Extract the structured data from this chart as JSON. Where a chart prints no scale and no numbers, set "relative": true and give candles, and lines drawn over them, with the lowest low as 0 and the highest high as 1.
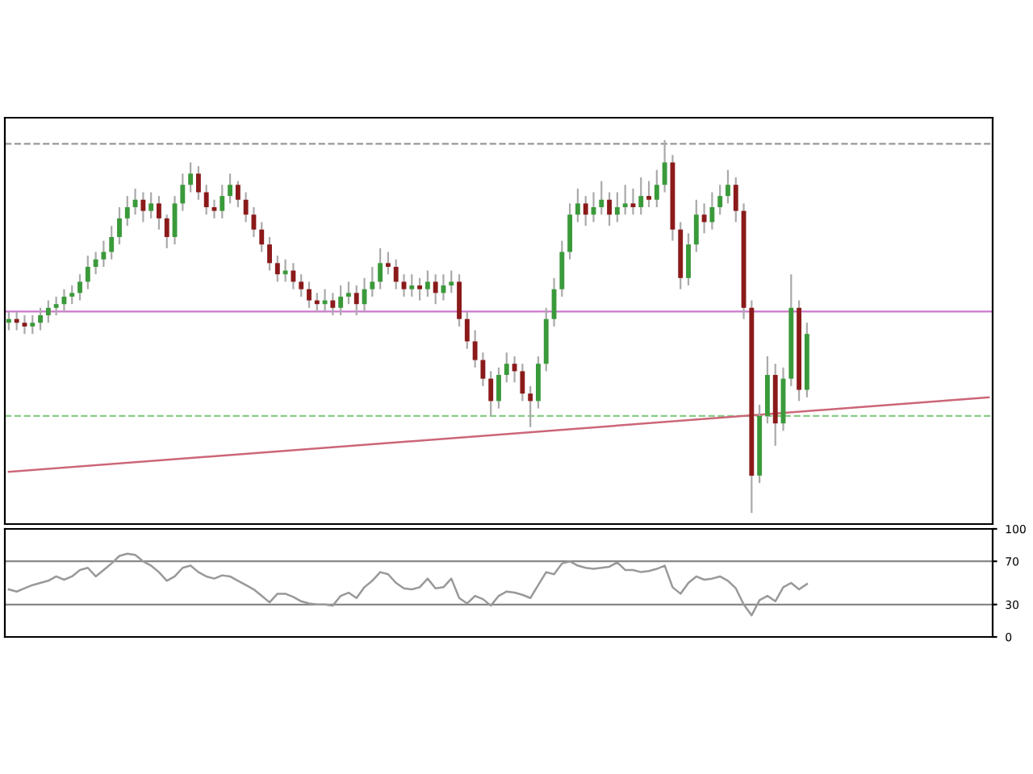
{
  "chart_data": [
    {
      "type": "candlestick",
      "relative": true,
      "tick_labels": false,
      "categories": [
        null,
        null,
        null,
        null,
        null,
        null,
        null,
        null,
        null,
        null,
        null,
        null,
        null,
        null,
        null,
        null,
        null,
        null,
        null,
        null,
        null,
        null,
        null,
        null,
        null,
        null,
        null,
        null,
        null,
        null,
        null,
        null,
        null,
        null,
        null,
        null,
        null,
        null,
        null,
        null,
        null,
        null,
        null,
        null,
        null,
        null,
        null,
        null,
        null,
        null,
        null,
        null,
        null,
        null,
        null,
        null,
        null,
        null,
        null,
        null,
        null,
        null,
        null,
        null,
        null,
        null,
        null,
        null,
        null,
        null,
        null,
        null,
        null,
        null,
        null,
        null,
        null,
        null,
        null,
        null,
        null,
        null,
        null,
        null,
        null,
        null,
        null,
        null,
        null,
        null,
        null,
        null,
        null,
        null,
        null,
        null,
        null,
        null,
        null,
        null,
        null,
        null,
        null,
        null,
        null,
        null,
        null,
        null,
        null,
        null,
        null,
        null,
        null,
        null,
        null,
        null,
        null,
        null,
        null,
        null,
        null,
        null,
        null,
        null,
        null
      ],
      "ohlc": [
        [
          0.51,
          0.54,
          0.49,
          0.52
        ],
        [
          0.52,
          0.54,
          0.49,
          0.51
        ],
        [
          0.51,
          0.53,
          0.48,
          0.5
        ],
        [
          0.5,
          0.53,
          0.48,
          0.51
        ],
        [
          0.51,
          0.55,
          0.49,
          0.53
        ],
        [
          0.53,
          0.57,
          0.51,
          0.55
        ],
        [
          0.55,
          0.58,
          0.53,
          0.56
        ],
        [
          0.56,
          0.6,
          0.54,
          0.58
        ],
        [
          0.58,
          0.61,
          0.56,
          0.59
        ],
        [
          0.59,
          0.64,
          0.57,
          0.62
        ],
        [
          0.62,
          0.69,
          0.6,
          0.66
        ],
        [
          0.66,
          0.7,
          0.64,
          0.68
        ],
        [
          0.68,
          0.73,
          0.66,
          0.7
        ],
        [
          0.7,
          0.77,
          0.68,
          0.74
        ],
        [
          0.74,
          0.82,
          0.72,
          0.79
        ],
        [
          0.79,
          0.85,
          0.77,
          0.82
        ],
        [
          0.82,
          0.87,
          0.8,
          0.84
        ],
        [
          0.84,
          0.86,
          0.78,
          0.81
        ],
        [
          0.81,
          0.86,
          0.79,
          0.83
        ],
        [
          0.83,
          0.85,
          0.76,
          0.79
        ],
        [
          0.79,
          0.8,
          0.71,
          0.74
        ],
        [
          0.74,
          0.85,
          0.72,
          0.83
        ],
        [
          0.83,
          0.91,
          0.81,
          0.88
        ],
        [
          0.88,
          0.94,
          0.86,
          0.91
        ],
        [
          0.91,
          0.93,
          0.84,
          0.86
        ],
        [
          0.86,
          0.88,
          0.8,
          0.82
        ],
        [
          0.82,
          0.84,
          0.79,
          0.81
        ],
        [
          0.81,
          0.88,
          0.79,
          0.85
        ],
        [
          0.85,
          0.91,
          0.83,
          0.88
        ],
        [
          0.88,
          0.89,
          0.82,
          0.84
        ],
        [
          0.84,
          0.86,
          0.78,
          0.8
        ],
        [
          0.8,
          0.82,
          0.74,
          0.76
        ],
        [
          0.76,
          0.78,
          0.7,
          0.72
        ],
        [
          0.72,
          0.74,
          0.65,
          0.67
        ],
        [
          0.67,
          0.69,
          0.62,
          0.64
        ],
        [
          0.64,
          0.68,
          0.62,
          0.65
        ],
        [
          0.65,
          0.67,
          0.6,
          0.62
        ],
        [
          0.62,
          0.64,
          0.58,
          0.6
        ],
        [
          0.6,
          0.62,
          0.55,
          0.57
        ],
        [
          0.57,
          0.59,
          0.54,
          0.56
        ],
        [
          0.56,
          0.6,
          0.54,
          0.57
        ],
        [
          0.57,
          0.59,
          0.53,
          0.55
        ],
        [
          0.55,
          0.61,
          0.53,
          0.58
        ],
        [
          0.58,
          0.62,
          0.56,
          0.59
        ],
        [
          0.59,
          0.61,
          0.53,
          0.56
        ],
        [
          0.56,
          0.63,
          0.54,
          0.6
        ],
        [
          0.6,
          0.66,
          0.58,
          0.62
        ],
        [
          0.62,
          0.71,
          0.6,
          0.67
        ],
        [
          0.67,
          0.7,
          0.64,
          0.66
        ],
        [
          0.66,
          0.68,
          0.6,
          0.62
        ],
        [
          0.62,
          0.64,
          0.58,
          0.6
        ],
        [
          0.6,
          0.64,
          0.58,
          0.61
        ],
        [
          0.61,
          0.63,
          0.57,
          0.6
        ],
        [
          0.6,
          0.65,
          0.58,
          0.62
        ],
        [
          0.62,
          0.64,
          0.56,
          0.59
        ],
        [
          0.59,
          0.64,
          0.57,
          0.61
        ],
        [
          0.61,
          0.65,
          0.59,
          0.62
        ],
        [
          0.62,
          0.64,
          0.5,
          0.52
        ],
        [
          0.52,
          0.54,
          0.44,
          0.46
        ],
        [
          0.46,
          0.49,
          0.39,
          0.41
        ],
        [
          0.41,
          0.43,
          0.34,
          0.36
        ],
        [
          0.36,
          0.38,
          0.26,
          0.3
        ],
        [
          0.3,
          0.39,
          0.28,
          0.37
        ],
        [
          0.37,
          0.43,
          0.35,
          0.4
        ],
        [
          0.4,
          0.42,
          0.35,
          0.38
        ],
        [
          0.38,
          0.4,
          0.3,
          0.32
        ],
        [
          0.32,
          0.34,
          0.23,
          0.3
        ],
        [
          0.3,
          0.42,
          0.28,
          0.4
        ],
        [
          0.4,
          0.55,
          0.38,
          0.52
        ],
        [
          0.52,
          0.63,
          0.5,
          0.6
        ],
        [
          0.6,
          0.73,
          0.58,
          0.7
        ],
        [
          0.7,
          0.83,
          0.68,
          0.8
        ],
        [
          0.8,
          0.87,
          0.78,
          0.83
        ],
        [
          0.83,
          0.85,
          0.77,
          0.8
        ],
        [
          0.8,
          0.86,
          0.78,
          0.82
        ],
        [
          0.82,
          0.89,
          0.8,
          0.84
        ],
        [
          0.84,
          0.86,
          0.77,
          0.8
        ],
        [
          0.8,
          0.86,
          0.78,
          0.82
        ],
        [
          0.82,
          0.88,
          0.8,
          0.83
        ],
        [
          0.83,
          0.87,
          0.8,
          0.82
        ],
        [
          0.82,
          0.9,
          0.8,
          0.85
        ],
        [
          0.85,
          0.89,
          0.82,
          0.84
        ],
        [
          0.84,
          0.92,
          0.82,
          0.88
        ],
        [
          0.88,
          1.0,
          0.86,
          0.94
        ],
        [
          0.94,
          0.96,
          0.73,
          0.76
        ],
        [
          0.76,
          0.78,
          0.6,
          0.63
        ],
        [
          0.63,
          0.75,
          0.61,
          0.72
        ],
        [
          0.72,
          0.84,
          0.7,
          0.8
        ],
        [
          0.8,
          0.83,
          0.75,
          0.78
        ],
        [
          0.78,
          0.86,
          0.76,
          0.82
        ],
        [
          0.82,
          0.88,
          0.8,
          0.85
        ],
        [
          0.85,
          0.92,
          0.83,
          0.88
        ],
        [
          0.88,
          0.9,
          0.78,
          0.81
        ],
        [
          0.81,
          0.83,
          0.52,
          0.55
        ],
        [
          0.55,
          0.57,
          0.0,
          0.1
        ],
        [
          0.1,
          0.29,
          0.08,
          0.26
        ],
        [
          0.26,
          0.42,
          0.24,
          0.37
        ],
        [
          0.37,
          0.4,
          0.18,
          0.24
        ],
        [
          0.24,
          0.39,
          0.22,
          0.36
        ],
        [
          0.36,
          0.64,
          0.34,
          0.55
        ],
        [
          0.55,
          0.57,
          0.3,
          0.33
        ],
        [
          0.33,
          0.51,
          0.31,
          0.48
        ],
        null,
        null,
        null,
        null,
        null,
        null,
        null,
        null,
        null,
        null,
        null,
        null,
        null,
        null,
        null,
        null,
        null,
        null,
        null,
        null,
        null,
        null,
        null
      ],
      "series": [
        {
          "type": "line",
          "color": "#cc6677",
          "values": [
            0.11,
            null,
            null,
            null,
            null,
            null,
            null,
            null,
            null,
            null,
            null,
            null,
            null,
            null,
            null,
            null,
            null,
            null,
            null,
            null,
            null,
            null,
            null,
            null,
            null,
            null,
            null,
            null,
            null,
            null,
            null,
            null,
            null,
            null,
            null,
            null,
            null,
            null,
            null,
            null,
            null,
            null,
            null,
            null,
            null,
            null,
            null,
            null,
            null,
            null,
            null,
            null,
            null,
            null,
            null,
            null,
            null,
            null,
            null,
            null,
            null,
            null,
            null,
            null,
            null,
            null,
            null,
            null,
            null,
            null,
            null,
            null,
            null,
            null,
            null,
            null,
            null,
            null,
            null,
            null,
            null,
            null,
            null,
            null,
            null,
            null,
            null,
            null,
            null,
            null,
            null,
            null,
            null,
            null,
            null,
            null,
            null,
            null,
            null,
            null,
            null,
            null,
            null,
            null,
            null,
            null,
            null,
            null,
            null,
            null,
            null,
            null,
            null,
            null,
            null,
            null,
            null,
            null,
            null,
            null,
            null,
            null,
            null,
            null,
            0.31
          ]
        }
      ],
      "ref_lines": [
        {
          "axis": "y",
          "value": 0.54,
          "label": null,
          "color": "#cc77cc",
          "line_style": "solid"
        },
        {
          "axis": "y",
          "value": 0.26,
          "label": null,
          "color": "#88cc88",
          "line_style": "dashed"
        },
        {
          "axis": "y",
          "value": 0.99,
          "label": null,
          "color": "#999999",
          "line_style": "dashed"
        }
      ]
    },
    {
      "type": "line",
      "tick_labels": "y",
      "marker": "none",
      "line_style": "solid",
      "ylim": [
        0,
        100
      ],
      "yticks": [
        0,
        30,
        70,
        100
      ],
      "categories": [
        null,
        null,
        null,
        null,
        null,
        null,
        null,
        null,
        null,
        null,
        null,
        null,
        null,
        null,
        null,
        null,
        null,
        null,
        null,
        null,
        null,
        null,
        null,
        null,
        null,
        null,
        null,
        null,
        null,
        null,
        null,
        null,
        null,
        null,
        null,
        null,
        null,
        null,
        null,
        null,
        null,
        null,
        null,
        null,
        null,
        null,
        null,
        null,
        null,
        null,
        null,
        null,
        null,
        null,
        null,
        null,
        null,
        null,
        null,
        null,
        null,
        null,
        null,
        null,
        null,
        null,
        null,
        null,
        null,
        null,
        null,
        null,
        null,
        null,
        null,
        null,
        null,
        null,
        null,
        null,
        null,
        null,
        null,
        null,
        null,
        null,
        null,
        null,
        null,
        null,
        null,
        null,
        null,
        null,
        null,
        null,
        null,
        null,
        null,
        null,
        null,
        null,
        null,
        null,
        null,
        null,
        null,
        null,
        null,
        null,
        null,
        null,
        null,
        null,
        null,
        null,
        null,
        null,
        null,
        null,
        null,
        null,
        null,
        null,
        null
      ],
      "series": [
        {
          "color": "#999999",
          "values": [
            44,
            42,
            45,
            48,
            50,
            52,
            56,
            53,
            56,
            62,
            64,
            56,
            62,
            68,
            75,
            77,
            76,
            70,
            66,
            60,
            52,
            56,
            64,
            66,
            60,
            56,
            54,
            57,
            56,
            52,
            48,
            44,
            38,
            32,
            40,
            40,
            37,
            33,
            31,
            30,
            30,
            29,
            38,
            41,
            36,
            46,
            52,
            60,
            58,
            50,
            45,
            44,
            46,
            54,
            45,
            46,
            54,
            36,
            31,
            38,
            35,
            29,
            38,
            42,
            41,
            39,
            36,
            48,
            60,
            58,
            68,
            70,
            66,
            64,
            63,
            64,
            65,
            69,
            62,
            62,
            60,
            61,
            63,
            66,
            46,
            40,
            50,
            56,
            53,
            54,
            56,
            52,
            45,
            30,
            20,
            34,
            38,
            33,
            46,
            50,
            44,
            49,
            null,
            null,
            null,
            null,
            null,
            null,
            null,
            null,
            null,
            null,
            null,
            null,
            null,
            null,
            null,
            null,
            null,
            null,
            null,
            null,
            null,
            null,
            null
          ]
        }
      ],
      "ref_lines": [
        {
          "axis": "y",
          "value": 30,
          "label": null,
          "color": "#888888"
        },
        {
          "axis": "y",
          "value": 70,
          "label": null,
          "color": "#888888"
        }
      ]
    }
  ]
}
